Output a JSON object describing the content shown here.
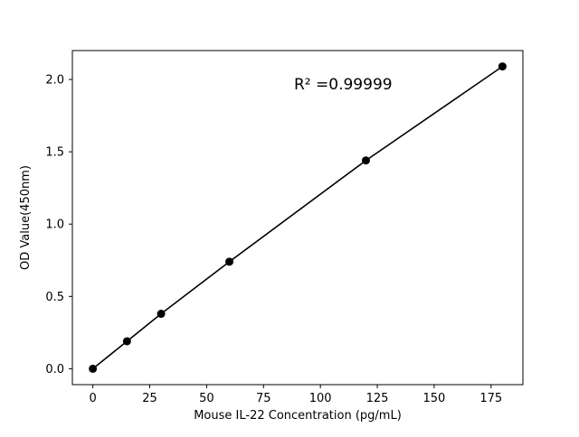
{
  "chart_data": {
    "type": "line",
    "title": "",
    "xlabel": "Mouse IL-22 Concentration (pg/mL)",
    "ylabel": "OD Value(450nm)",
    "x": [
      0,
      15,
      30,
      60,
      120,
      180
    ],
    "y": [
      0.0,
      0.19,
      0.38,
      0.74,
      1.44,
      2.09
    ],
    "xlim": [
      -9,
      189
    ],
    "ylim": [
      -0.11,
      2.2
    ],
    "xticks": [
      0,
      25,
      50,
      75,
      100,
      125,
      150,
      175
    ],
    "xticklabels": [
      "0",
      "25",
      "50",
      "75",
      "100",
      "125",
      "150",
      "175"
    ],
    "yticks": [
      0.0,
      0.5,
      1.0,
      1.5,
      2.0
    ],
    "yticklabels": [
      "0.0",
      "0.5",
      "1.0",
      "1.5",
      "2.0"
    ],
    "grid": false,
    "legend_position": "none",
    "line_color": "#000000",
    "marker_color": "#000000",
    "marker_style": "circle",
    "annotation": {
      "text": "R² =0.99999",
      "x": 110,
      "y": 1.93
    }
  }
}
